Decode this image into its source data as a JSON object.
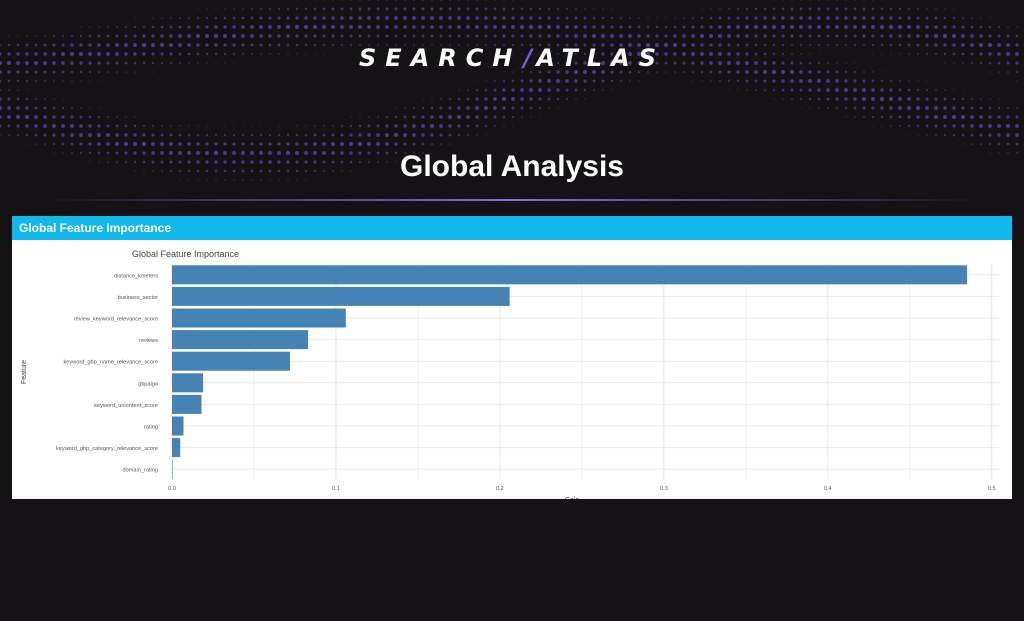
{
  "brand": {
    "logo_left": "SEARCH",
    "logo_right": "ATLAS",
    "accent_color": "#7b5bd6"
  },
  "page": {
    "title": "Global Analysis"
  },
  "panel": {
    "header": "Global Feature Importance",
    "header_color": "#12b8ec"
  },
  "chart_data": {
    "type": "bar",
    "orientation": "horizontal",
    "title": "Global Feature Importance",
    "xlabel": "Gain",
    "ylabel": "Feature",
    "xlim": [
      0,
      0.5
    ],
    "xticks": [
      "0.0",
      "0.1",
      "0.2",
      "0.3",
      "0.4",
      "0.5"
    ],
    "grid": true,
    "bar_color": "#4682b4",
    "categories": [
      "distance_kmeters",
      "business_sector",
      "review_keyword_relevance_score",
      "reviews",
      "keyword_gbp_name_relevance_score",
      "gbpalgo",
      "keyword_uniontent_score",
      "rating",
      "keyword_gbp_category_relevance_score",
      "domain_rating"
    ],
    "values": [
      0.485,
      0.206,
      0.106,
      0.083,
      0.072,
      0.019,
      0.018,
      0.007,
      0.005,
      0.0
    ]
  }
}
